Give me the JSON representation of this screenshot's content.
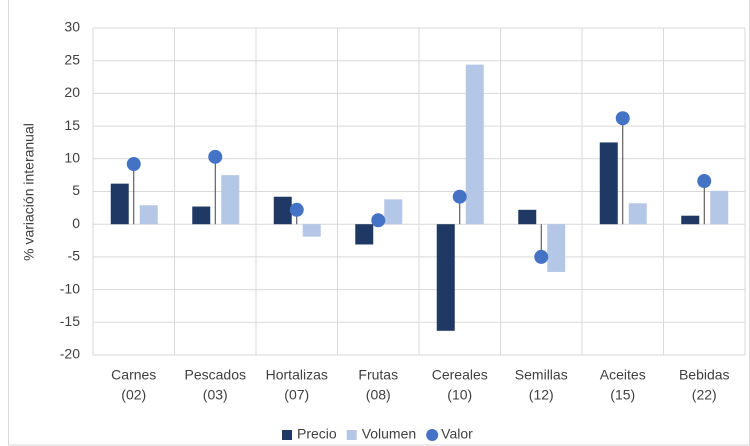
{
  "chart_data": {
    "type": "bar",
    "y_label": "% variación interanual",
    "categories": [
      [
        "Carnes",
        "(02)"
      ],
      [
        "Pescados",
        "(03)"
      ],
      [
        "Hortalizas",
        "(07)"
      ],
      [
        "Frutas",
        "(08)"
      ],
      [
        "Cereales",
        "(10)"
      ],
      [
        "Semillas",
        "(12)"
      ],
      [
        "Aceites",
        "(15)"
      ],
      [
        "Bebidas",
        "(22)"
      ]
    ],
    "series": [
      {
        "name": "Precio",
        "color": "#1f3864",
        "kind": "bar",
        "values": [
          6.2,
          2.7,
          4.2,
          -3.1,
          -16.3,
          2.2,
          12.5,
          1.3
        ]
      },
      {
        "name": "Volumen",
        "color": "#b4c7e7",
        "kind": "bar",
        "values": [
          2.9,
          7.5,
          -1.9,
          3.8,
          24.4,
          -7.3,
          3.2,
          5.1
        ]
      },
      {
        "name": "Valor",
        "color": "#4472c4",
        "kind": "dot",
        "values": [
          9.2,
          10.3,
          2.2,
          0.6,
          4.2,
          -5.0,
          16.2,
          6.6
        ]
      }
    ],
    "ylim": [
      -20,
      30
    ],
    "yticks": [
      -20,
      -15,
      -10,
      -5,
      0,
      5,
      10,
      15,
      20,
      25,
      30
    ],
    "grid": true,
    "legend": "bottom"
  }
}
